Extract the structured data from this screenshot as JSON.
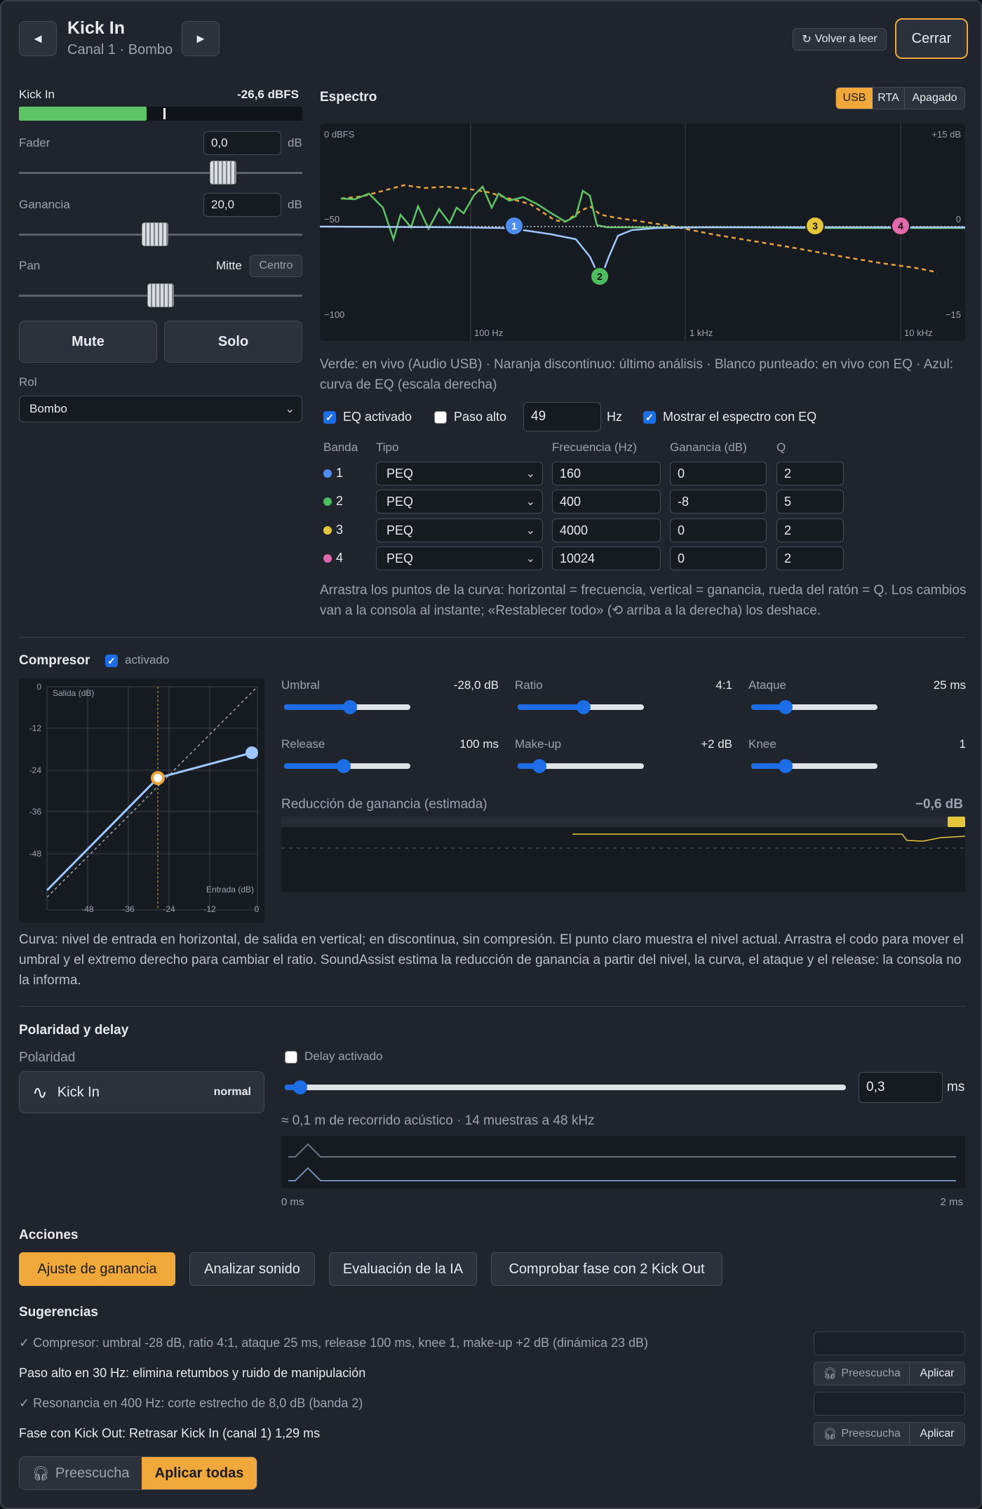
{
  "header": {
    "prev_label": "◄",
    "next_label": "►",
    "title": "Kick In",
    "subtitle": "Canal 1 · Bombo",
    "reread_label": "Volver a leer",
    "close_label": "Cerrar"
  },
  "meter": {
    "label": "Kick In",
    "value": "-26,6 dBFS",
    "fill_fraction": 0.45,
    "peak_fraction": 0.51
  },
  "fader": {
    "label": "Fader",
    "value": "0,0",
    "unit": "dB",
    "position_fraction": 0.72
  },
  "gain": {
    "label": "Ganancia",
    "value": "20,0",
    "unit": "dB",
    "position_fraction": 0.48
  },
  "pan": {
    "label": "Pan",
    "value": "Mitte",
    "center_label": "Centro",
    "position_fraction": 0.5
  },
  "mute_label": "Mute",
  "solo_label": "Solo",
  "role": {
    "label": "Rol",
    "value": "Bombo"
  },
  "spectrum": {
    "title": "Espectro",
    "source_buttons": [
      "USB",
      "RTA",
      "Apagado"
    ],
    "active_source": "USB",
    "axis_top_left": "0 dBFS",
    "axis_mid_left": "−50",
    "axis_bottom_left": "−100",
    "axis_top_right": "+15 dB",
    "axis_mid_right": "0",
    "axis_bottom_right": "−15",
    "freq_labels": [
      "100 Hz",
      "1 kHz",
      "10 kHz"
    ],
    "legend_text": "Verde: en vivo (Audio USB) · Naranja discontinuo: último análisis · Blanco punteado: en vivo con EQ · Azul: curva de EQ (escala derecha)",
    "node_labels": [
      "1",
      "2",
      "3",
      "4"
    ],
    "colors": {
      "green": "#5fc466",
      "orange": "#e8a23a",
      "blue": "#9ec6ff"
    }
  },
  "eq": {
    "enabled_label": "EQ activado",
    "highpass_label": "Paso alto",
    "highpass_value": "49",
    "highpass_unit": "Hz",
    "show_eq_label": "Mostrar el espectro con EQ",
    "headers": [
      "Banda",
      "Tipo",
      "Frecuencia (Hz)",
      "Ganancia (dB)",
      "Q"
    ],
    "bands": [
      {
        "n": "1",
        "color": "#4f8cf0",
        "type": "PEQ",
        "freq": "160",
        "gain": "0",
        "q": "2"
      },
      {
        "n": "2",
        "color": "#4cbc5c",
        "type": "PEQ",
        "freq": "400",
        "gain": "-8",
        "q": "5"
      },
      {
        "n": "3",
        "color": "#e5c53a",
        "type": "PEQ",
        "freq": "4000",
        "gain": "0",
        "q": "2"
      },
      {
        "n": "4",
        "color": "#e06aa9",
        "type": "PEQ",
        "freq": "10024",
        "gain": "0",
        "q": "2"
      }
    ],
    "help": "Arrastra los puntos de la curva: horizontal = frecuencia, vertical = ganancia, rueda del ratón = Q. Los cambios van a la consola al instante; «Restablecer todo» (⟲ arriba a la derecha) los deshace."
  },
  "compressor": {
    "title": "Compresor",
    "enabled_label": "activado",
    "graph_y_label": "Salida (dB)",
    "graph_x_label": "Entrada (dB)",
    "y_ticks": [
      "0",
      "-12",
      "-24",
      "-36",
      "-48"
    ],
    "x_ticks": [
      "-48",
      "-36",
      "-24",
      "-12",
      "0"
    ],
    "params": [
      {
        "name": "Umbral",
        "value": "-28,0 dB",
        "fraction": 0.52
      },
      {
        "name": "Ratio",
        "value": "4:1",
        "fraction": 0.52
      },
      {
        "name": "Ataque",
        "value": "25 ms",
        "fraction": 0.27
      },
      {
        "name": "Release",
        "value": "100 ms",
        "fraction": 0.47
      },
      {
        "name": "Make-up",
        "value": "+2 dB",
        "fraction": 0.17
      },
      {
        "name": "Knee",
        "value": "1",
        "fraction": 0.27
      }
    ],
    "gr_label": "Reducción de ganancia (estimada)",
    "gr_value": "−0,6 dB",
    "description": "Curva: nivel de entrada en horizontal, de salida en vertical; en discontinua, sin compresión. El punto claro muestra el nivel actual. Arrastra el codo para mover el umbral y el extremo derecho para cambiar el ratio. SoundAssist estima la reducción de ganancia a partir del nivel, la curva, el ataque y el release: la consola no la informa."
  },
  "polarity": {
    "title": "Polaridad y delay",
    "polarity_label": "Polaridad",
    "channel": "Kick In",
    "state": "normal",
    "delay_enabled_label": "Delay activado",
    "delay_value": "0,3",
    "delay_unit": "ms",
    "delay_fraction": 0.02,
    "distance_text": "≈ 0,1 m de recorrido acústico · 14 muestras a 48 kHz",
    "axis_start": "0 ms",
    "axis_end": "2 ms"
  },
  "actions": {
    "title": "Acciones",
    "buttons": [
      "Ajuste de ganancia",
      "Analizar sonido",
      "Evaluación de la IA",
      "Comprobar fase con 2 Kick Out"
    ]
  },
  "suggestions": {
    "title": "Sugerencias",
    "items": [
      {
        "text": "✓ Compresor: umbral -28 dB, ratio 4:1, ataque 25 ms, release 100 ms, knee 1, make-up +2 dB (dinámica 23 dB)",
        "applied": true
      },
      {
        "text": "Paso alto en 30 Hz: elimina retumbos y ruido de manipulación",
        "applied": false
      },
      {
        "text": "✓ Resonancia en 400 Hz: corte estrecho de 8,0 dB (banda 2)",
        "applied": true
      },
      {
        "text": "Fase con Kick Out: Retrasar Kick In (canal 1) 1,29 ms",
        "applied": false
      }
    ],
    "preview_label": "Preescucha",
    "apply_label": "Aplicar",
    "preview_all_label": "Preescucha",
    "apply_all_label": "Aplicar todas"
  }
}
